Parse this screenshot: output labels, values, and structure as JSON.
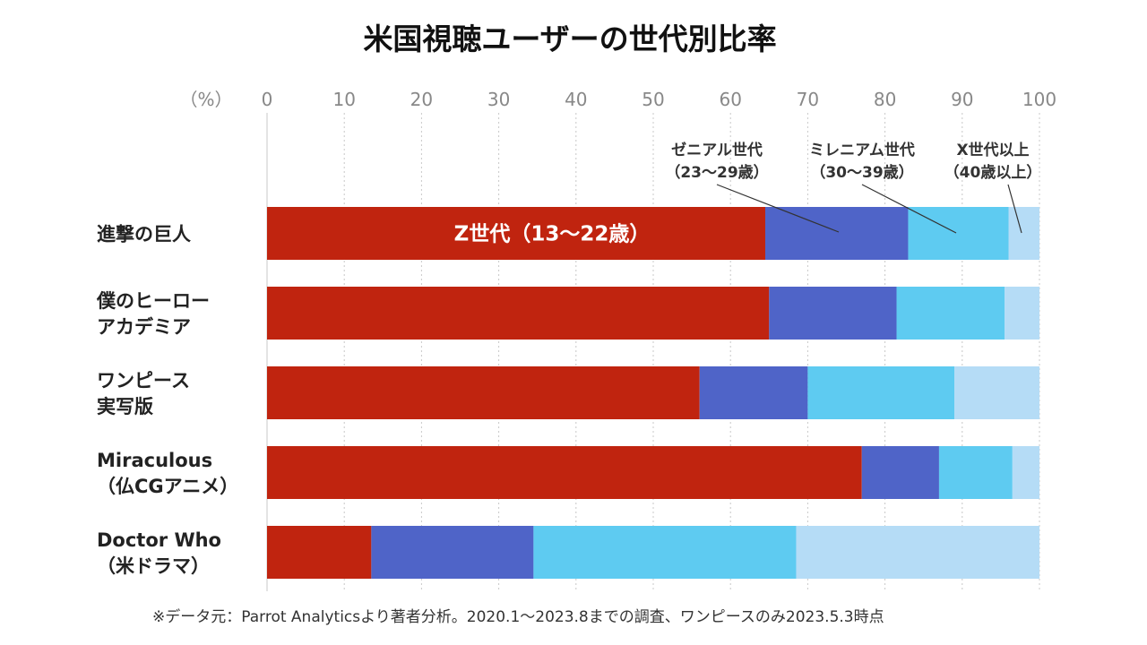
{
  "chart_data": {
    "type": "bar",
    "orientation": "horizontal",
    "stacked": true,
    "title": "米国視聴ユーザーの世代別比率",
    "unit_label": "（%）",
    "xlim": [
      0,
      100
    ],
    "x_ticks": [
      "0",
      "10",
      "20",
      "30",
      "40",
      "50",
      "60",
      "70",
      "80",
      "90",
      "100"
    ],
    "grid": "vertical dotted",
    "categories": [
      [
        "進撃の巨人"
      ],
      [
        "僕のヒーロー",
        "アカデミア"
      ],
      [
        "ワンピース",
        "実写版"
      ],
      [
        "Miraculous",
        "（仏CGアニメ）"
      ],
      [
        "Doctor Who",
        "（米ドラマ）"
      ]
    ],
    "series": [
      {
        "name": "Z世代（13〜22歳）",
        "color": "#c0240f",
        "values": [
          64.5,
          65,
          56,
          77,
          13.5
        ]
      },
      {
        "name": "ゼニアル世代（23〜29歳）",
        "color": "#4f64c8",
        "values": [
          18.5,
          16.5,
          14,
          10,
          21
        ]
      },
      {
        "name": "ミレニアム世代（30〜39歳）",
        "color": "#5ecbf1",
        "values": [
          13,
          14,
          19,
          9.5,
          34
        ]
      },
      {
        "name": "X世代以上（40歳以上）",
        "color": "#b5dcf6",
        "values": [
          4,
          4.5,
          11,
          3.5,
          31.5
        ]
      }
    ],
    "annotations": {
      "z": "Z世代（13〜22歳）",
      "zenial": [
        "ゼニアル世代",
        "（23〜29歳）"
      ],
      "millennial": [
        "ミレニアム世代",
        "（30〜39歳）"
      ],
      "genx": [
        "X世代以上",
        "（40歳以上）"
      ]
    },
    "source": "※データ元：Parrot Analyticsより著者分析。2020.1〜2023.8までの調査、ワンピースのみ2023.5.3時点"
  }
}
